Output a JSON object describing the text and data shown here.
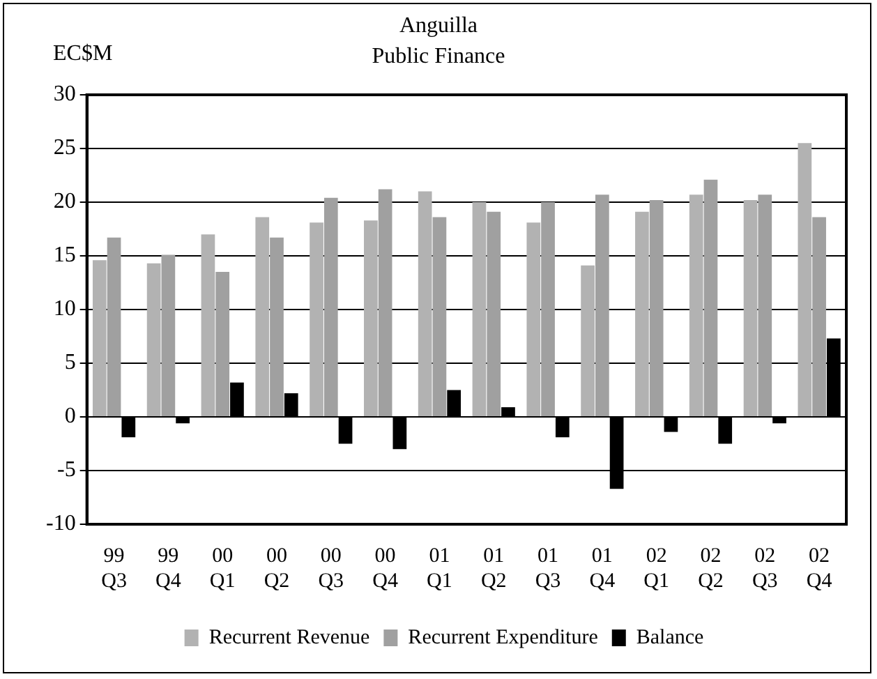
{
  "chart_data": {
    "type": "bar",
    "title": "Anguilla",
    "subtitle": "Public Finance",
    "ylabel": "EC$M",
    "categories": [
      "99\nQ3",
      "99\nQ4",
      "00\nQ1",
      "00\nQ2",
      "00\nQ3",
      "00\nQ4",
      "01\nQ1",
      "01\nQ2",
      "01\nQ3",
      "01\nQ4",
      "02\nQ1",
      "02\nQ2",
      "02\nQ3",
      "02\nQ4"
    ],
    "series": [
      {
        "name": "Recurrent Revenue",
        "color": "#b2b2b2",
        "values": [
          14.6,
          14.3,
          17.0,
          18.6,
          18.1,
          18.3,
          21.0,
          20.0,
          18.1,
          14.1,
          19.1,
          20.7,
          20.2,
          25.5
        ]
      },
      {
        "name": "Recurrent Expenditure",
        "color": "#a0a0a0",
        "values": [
          16.7,
          15.1,
          13.5,
          16.7,
          20.4,
          21.2,
          18.6,
          19.1,
          20.0,
          20.7,
          20.2,
          22.1,
          20.7,
          18.6
        ]
      },
      {
        "name": "Balance",
        "color": "#000000",
        "values": [
          -1.9,
          -0.6,
          3.2,
          2.2,
          -2.5,
          -3.0,
          2.5,
          0.9,
          -1.9,
          -6.7,
          -1.4,
          -2.5,
          -0.6,
          7.3
        ]
      }
    ],
    "ylim": [
      -10,
      30
    ],
    "yticks": [
      -10,
      -5,
      0,
      5,
      10,
      15,
      20,
      25,
      30
    ],
    "grid": "y",
    "legend": "bottom"
  }
}
